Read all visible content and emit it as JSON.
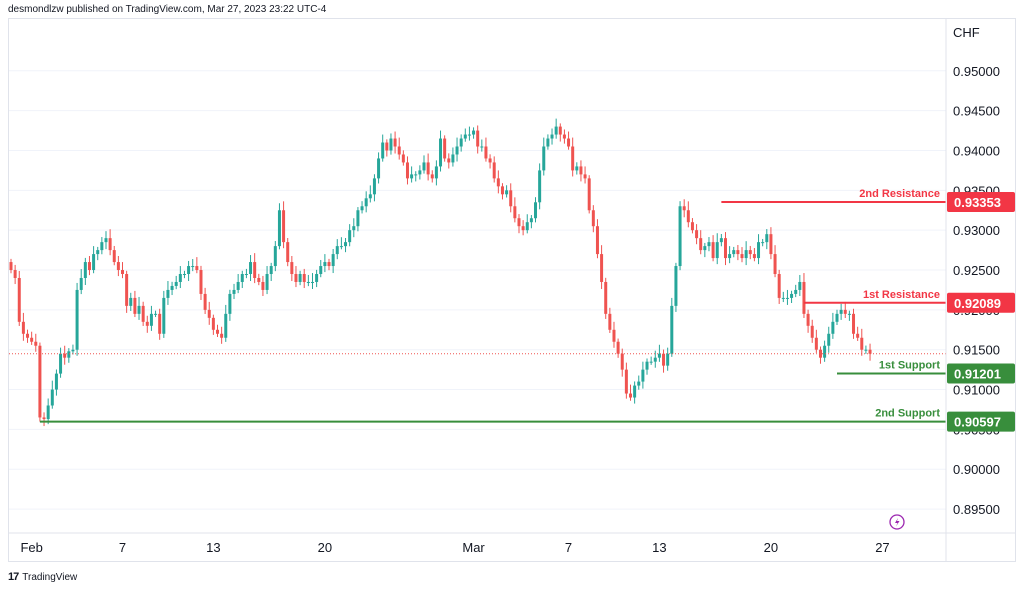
{
  "header": {
    "publisher_text": "desmondlzw published on TradingView.com, Mar 27, 2023 23:22 UTC-4"
  },
  "footer": {
    "brand": "TradingView"
  },
  "colors": {
    "up": "#26a69a",
    "down": "#ef5350",
    "resistance": "#f23645",
    "support": "#388e3c",
    "grid": "#f0f3fa",
    "axis_text": "#131722"
  },
  "chart_data": {
    "type": "candlestick",
    "currency_label": "CHF",
    "ylim": [
      0.892,
      0.9565
    ],
    "y_ticks": [
      0.95,
      0.945,
      0.94,
      0.935,
      0.93,
      0.925,
      0.92,
      0.915,
      0.91,
      0.905,
      0.9,
      0.895
    ],
    "y_tick_labels": [
      "0.95000",
      "0.94500",
      "0.94000",
      "0.93500",
      "0.93000",
      "0.92500",
      "0.92000",
      "0.91500",
      "0.91000",
      "0.90500",
      "0.90000",
      "0.89500"
    ],
    "x_labels": [
      "Feb",
      "7",
      "13",
      "20",
      "Mar",
      "7",
      "13",
      "20",
      "27"
    ],
    "x_label_index": [
      5,
      27,
      49,
      76,
      112,
      135,
      157,
      184,
      211
    ],
    "levels": [
      {
        "name": "2nd Resistance",
        "value": 0.93353,
        "label": "0.93353",
        "type": "resistance",
        "start_index": 172
      },
      {
        "name": "1st Resistance",
        "value": 0.92089,
        "label": "0.92089",
        "type": "resistance",
        "start_index": 192
      },
      {
        "name": "1st Support",
        "value": 0.91201,
        "label": "0.91201",
        "type": "support",
        "start_index": 200
      },
      {
        "name": "2nd Support",
        "value": 0.90597,
        "label": "0.90597",
        "type": "support",
        "start_index": 7
      }
    ],
    "last_price": 0.9145,
    "candles_close": [
      0.925,
      0.924,
      0.9185,
      0.917,
      0.9165,
      0.916,
      0.9155,
      0.9065,
      0.9063,
      0.908,
      0.91,
      0.912,
      0.9145,
      0.914,
      0.9148,
      0.915,
      0.9225,
      0.924,
      0.926,
      0.925,
      0.927,
      0.9275,
      0.9285,
      0.929,
      0.9275,
      0.926,
      0.925,
      0.9245,
      0.9205,
      0.9215,
      0.9195,
      0.9205,
      0.9185,
      0.918,
      0.9195,
      0.9195,
      0.917,
      0.9215,
      0.9225,
      0.923,
      0.9235,
      0.9245,
      0.9245,
      0.9255,
      0.9255,
      0.925,
      0.922,
      0.92,
      0.919,
      0.9175,
      0.917,
      0.9165,
      0.9195,
      0.922,
      0.9225,
      0.9235,
      0.9245,
      0.9245,
      0.926,
      0.924,
      0.9235,
      0.9225,
      0.9245,
      0.9255,
      0.928,
      0.9325,
      0.9285,
      0.926,
      0.9245,
      0.9235,
      0.9245,
      0.9235,
      0.9235,
      0.9235,
      0.9245,
      0.9255,
      0.926,
      0.9255,
      0.927,
      0.928,
      0.928,
      0.9285,
      0.93,
      0.9305,
      0.9325,
      0.933,
      0.934,
      0.9345,
      0.9365,
      0.939,
      0.941,
      0.94,
      0.9415,
      0.9405,
      0.9395,
      0.9385,
      0.9365,
      0.937,
      0.937,
      0.9375,
      0.9385,
      0.937,
      0.9365,
      0.938,
      0.9415,
      0.939,
      0.9385,
      0.9395,
      0.9405,
      0.9415,
      0.942,
      0.942,
      0.9425,
      0.9405,
      0.9405,
      0.939,
      0.9385,
      0.9365,
      0.9355,
      0.9345,
      0.935,
      0.933,
      0.9315,
      0.9305,
      0.93,
      0.931,
      0.9315,
      0.9335,
      0.9375,
      0.9405,
      0.9415,
      0.942,
      0.943,
      0.942,
      0.9415,
      0.9405,
      0.9375,
      0.938,
      0.937,
      0.9365,
      0.9325,
      0.9305,
      0.927,
      0.9235,
      0.9195,
      0.9175,
      0.916,
      0.9145,
      0.9125,
      0.9095,
      0.909,
      0.9105,
      0.911,
      0.9125,
      0.9135,
      0.9135,
      0.914,
      0.9145,
      0.913,
      0.9145,
      0.9205,
      0.9255,
      0.933,
      0.9325,
      0.931,
      0.93,
      0.929,
      0.9275,
      0.928,
      0.9285,
      0.9265,
      0.9285,
      0.929,
      0.9265,
      0.927,
      0.9275,
      0.927,
      0.9265,
      0.9275,
      0.927,
      0.9265,
      0.9285,
      0.9285,
      0.9295,
      0.927,
      0.9245,
      0.9215,
      0.9215,
      0.9215,
      0.922,
      0.9225,
      0.9235,
      0.9195,
      0.918,
      0.9165,
      0.915,
      0.914,
      0.9155,
      0.917,
      0.9185,
      0.9195,
      0.92,
      0.9195,
      0.9195,
      0.917,
      0.9165,
      0.915,
      0.915,
      0.9145
    ]
  }
}
